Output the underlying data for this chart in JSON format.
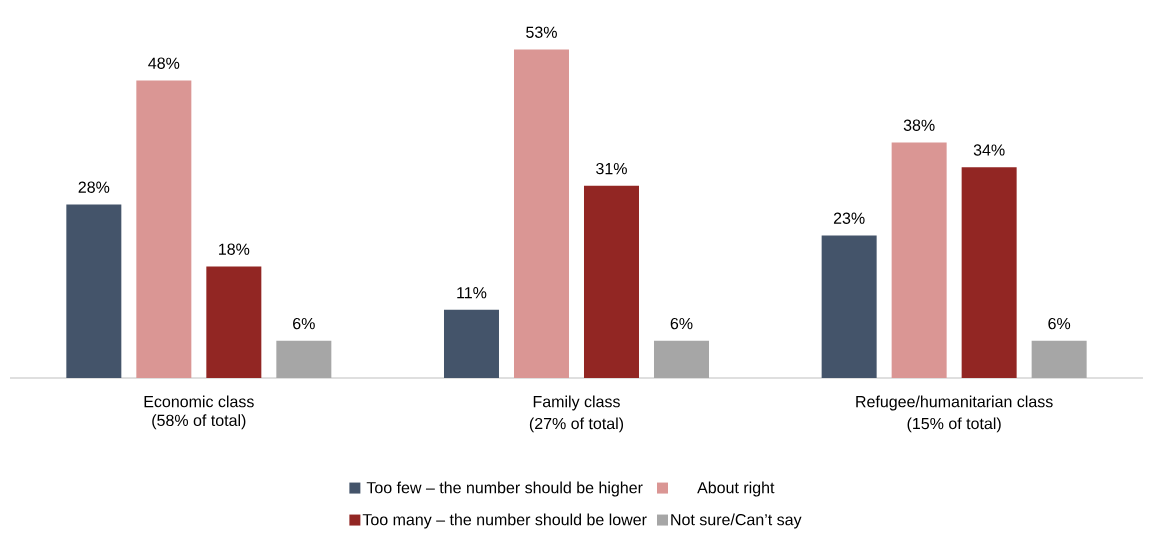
{
  "chart_data": {
    "type": "bar",
    "categories": [
      "Economic class",
      "Family class",
      "Refugee/humanitarian class"
    ],
    "annotations": [
      "(58% of total)",
      "(27% of total)",
      "(15% of total)"
    ],
    "series": [
      {
        "name": "Too few – the number should be higher",
        "color": "#44546a",
        "values": [
          28,
          11,
          23
        ],
        "value_labels": [
          "28%",
          "11%",
          "23%"
        ]
      },
      {
        "name": "About right",
        "color": "#da9694",
        "values": [
          48,
          53,
          38
        ],
        "value_labels": [
          "48%",
          "53%",
          "38%"
        ]
      },
      {
        "name": "Too many – the number should be lower",
        "color": "#922623",
        "values": [
          18,
          31,
          34
        ],
        "value_labels": [
          "18%",
          "31%",
          "34%"
        ]
      },
      {
        "name": "Not sure/Can’t say",
        "color": "#a6a6a6",
        "values": [
          6,
          6,
          6
        ],
        "value_labels": [
          "6%",
          "6%",
          "6%"
        ]
      }
    ],
    "legend": "bottom"
  }
}
